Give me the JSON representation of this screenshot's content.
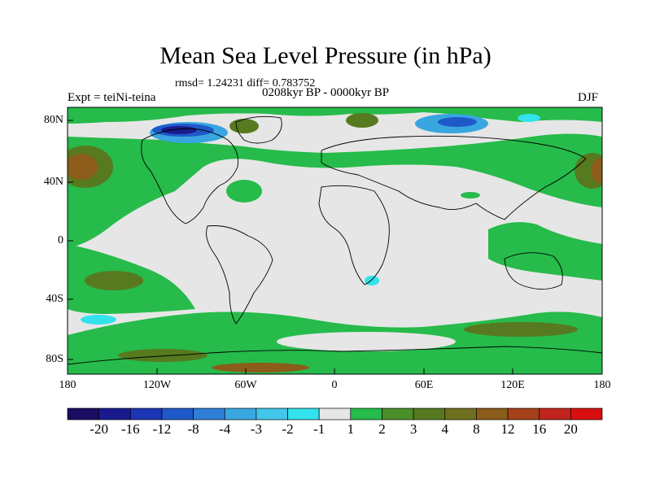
{
  "title": "Mean Sea Level Pressure (in hPa)",
  "stats": "rmsd= 1.24231 diff= 0.783752",
  "period": "0208kyr BP - 0000kyr BP",
  "experiment": "Expt = teiNi-teina",
  "season": "DJF",
  "latitude_labels": [
    "80N",
    "40N",
    "0",
    "40S",
    "80S"
  ],
  "longitude_labels": [
    "180",
    "120W",
    "60W",
    "0",
    "60E",
    "120E",
    "180"
  ],
  "colorbar": {
    "colors": [
      "#1a0b63",
      "#1a1a8f",
      "#1b36b4",
      "#1f59c9",
      "#2f7fd6",
      "#39a6e0",
      "#42c6ea",
      "#33e2ec",
      "#e6e6e6",
      "#26bb4a",
      "#4a8e2a",
      "#577a20",
      "#6f6f1f",
      "#8b5c1a",
      "#a5411a",
      "#c0241c",
      "#d90f0f"
    ],
    "labels": [
      "-20",
      "-16",
      "-12",
      "-8",
      "-4",
      "-3",
      "-2",
      "-1",
      "1",
      "2",
      "3",
      "4",
      "8",
      "12",
      "16",
      "20"
    ]
  }
}
